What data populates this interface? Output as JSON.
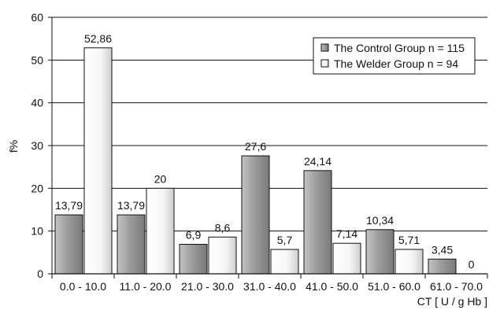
{
  "chart_data": {
    "type": "bar",
    "title": "",
    "xlabel": "CT [ U / g Hb ]",
    "ylabel": "f%",
    "ylim": [
      0,
      60
    ],
    "yticks": [
      0,
      10,
      20,
      30,
      40,
      50,
      60
    ],
    "grid": true,
    "legend_position": "top-right",
    "categories": [
      "0.0 - 10.0",
      "11.0 - 20.0",
      "21.0 - 30.0",
      "31.0 - 40.0",
      "41.0 - 50.0",
      "51.0 - 60.0",
      "61.0 - 70.0"
    ],
    "series": [
      {
        "name": "The Control Group n = 115",
        "values": [
          13.79,
          13.79,
          6.9,
          27.6,
          24.14,
          10.34,
          3.45
        ],
        "labels": [
          "13,79",
          "13,79",
          "6,9",
          "27,6",
          "24,14",
          "10,34",
          "3,45"
        ],
        "color": "#9a9a9a"
      },
      {
        "name": "The Welder Group n = 94",
        "values": [
          52.86,
          20,
          8.6,
          5.7,
          7.14,
          5.71,
          0
        ],
        "labels": [
          "52,86",
          "20",
          "8,6",
          "5,7",
          "7,14",
          "5,71",
          "0"
        ],
        "color": "#f4f4f4"
      }
    ]
  }
}
